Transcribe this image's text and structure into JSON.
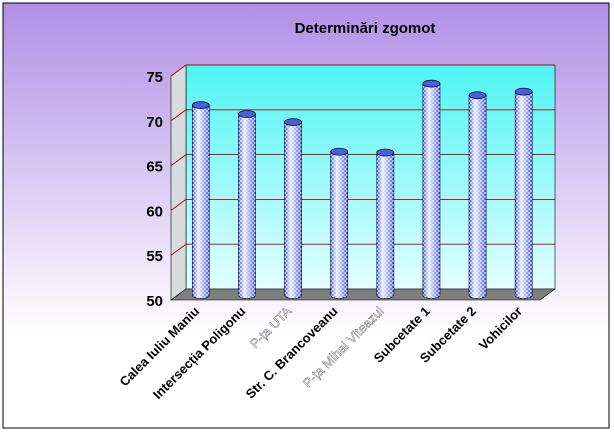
{
  "chart_data": {
    "type": "bar",
    "title": "Determinări zgomot",
    "categories": [
      "Calea Iuliu Maniu",
      "Intersecția Poligonu",
      "P-ța UTA",
      "Str. C. Brancoveanu",
      "P-ța Mihai Viteazul",
      "Subcetate 1",
      "Subcetate 2",
      "Vohicilor"
    ],
    "series": [
      {
        "values": [
          71.2,
          70.2,
          69.3,
          66.0,
          65.9,
          73.6,
          72.3,
          72.7
        ]
      }
    ],
    "ylim": [
      50,
      75
    ],
    "yticks": [
      50,
      55,
      60,
      65,
      70,
      75
    ],
    "grid": true,
    "legend": "none",
    "colors": {
      "bar": "#4a5ee0",
      "bar_light": "#e8ecff",
      "gridline": "#b00000",
      "plot_top": "#4ff4f4",
      "plot_bottom": "#e4ffff",
      "floor": "#7f7f7f",
      "bg_top": "#b18fe6",
      "bg_bottom": "#ffffff"
    }
  }
}
